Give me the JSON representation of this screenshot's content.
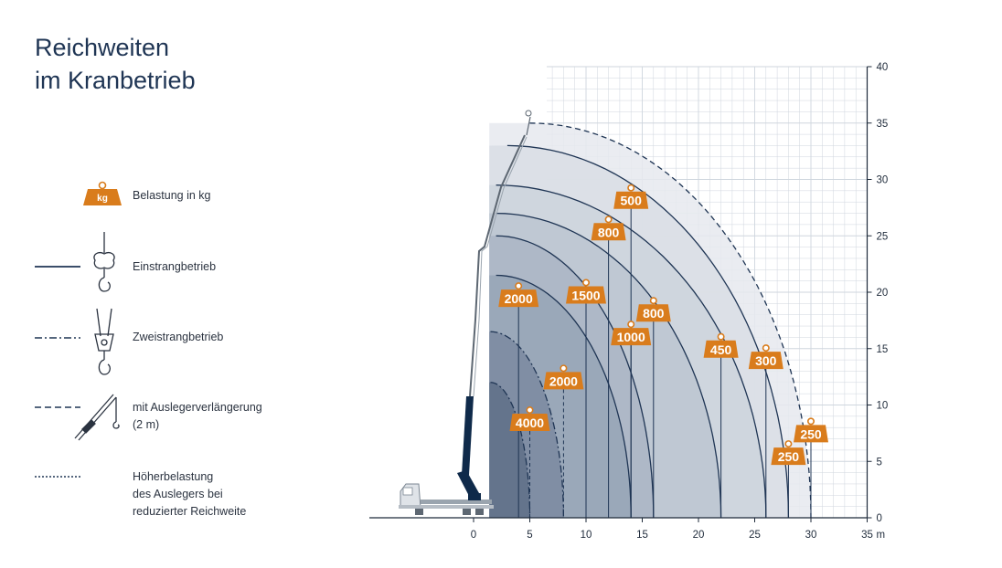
{
  "title": {
    "line1": "Reichweiten",
    "line2": "im Kranbetrieb"
  },
  "legend": {
    "weight_icon_text": "kg",
    "belastung": "Belastung in kg",
    "einstrang": "Einstrangbetrieb",
    "zweistrang": "Zweistrangbetrieb",
    "ausleger_line1": "mit Auslegerverlängerung",
    "ausleger_line2": "(2 m)",
    "hoeher_line1": "Höherbelastung",
    "hoeher_line2": "des Auslegers bei",
    "hoeher_line3": "reduzierter Reichweite"
  },
  "colors": {
    "weight": "#d97c1c",
    "curve": "#1f3554",
    "grid": "#cfd6de",
    "zone_dark": "#8796a8",
    "zone_light": "#e6e9ee",
    "boom": "#0f2a4a"
  },
  "axes": {
    "x_ticks": [
      0,
      5,
      10,
      15,
      20,
      25,
      30,
      35
    ],
    "x_unit": "m",
    "y_ticks": [
      0,
      5,
      10,
      15,
      20,
      25,
      30,
      35,
      40
    ],
    "x_range": [
      -9,
      35
    ],
    "y_range": [
      0,
      40
    ]
  },
  "curves": [
    {
      "style": "dashdot",
      "end_x": 5,
      "tip_x": 1.5,
      "tip_y": 12
    },
    {
      "style": "dashdot",
      "end_x": 8,
      "tip_x": 1.5,
      "tip_y": 16.5
    },
    {
      "style": "solid",
      "end_x": 14,
      "tip_x": 2,
      "tip_y": 21.5
    },
    {
      "style": "solid",
      "end_x": 16,
      "tip_x": 2,
      "tip_y": 25
    },
    {
      "style": "solid",
      "end_x": 22,
      "tip_x": 2,
      "tip_y": 27
    },
    {
      "style": "solid",
      "end_x": 26,
      "tip_x": 2,
      "tip_y": 29.5
    },
    {
      "style": "solid",
      "end_x": 28,
      "tip_x": 3,
      "tip_y": 33
    },
    {
      "style": "dashed",
      "end_x": 30,
      "tip_x": 5,
      "tip_y": 35
    }
  ],
  "loads": [
    {
      "label": "4000",
      "x": 5,
      "y": 8.5
    },
    {
      "label": "2000",
      "x": 8,
      "y": 12.2
    },
    {
      "label": "2000",
      "x": 4,
      "y": 19.5
    },
    {
      "label": "1500",
      "x": 10,
      "y": 19.8
    },
    {
      "label": "1000",
      "x": 14,
      "y": 16.1
    },
    {
      "label": "800",
      "x": 16,
      "y": 18.2
    },
    {
      "label": "450",
      "x": 22,
      "y": 15
    },
    {
      "label": "300",
      "x": 26,
      "y": 14
    },
    {
      "label": "800",
      "x": 12,
      "y": 25.4
    },
    {
      "label": "500",
      "x": 14,
      "y": 28.2
    },
    {
      "label": "250",
      "x": 28,
      "y": 5.5
    },
    {
      "label": "250",
      "x": 30,
      "y": 7.5
    }
  ]
}
